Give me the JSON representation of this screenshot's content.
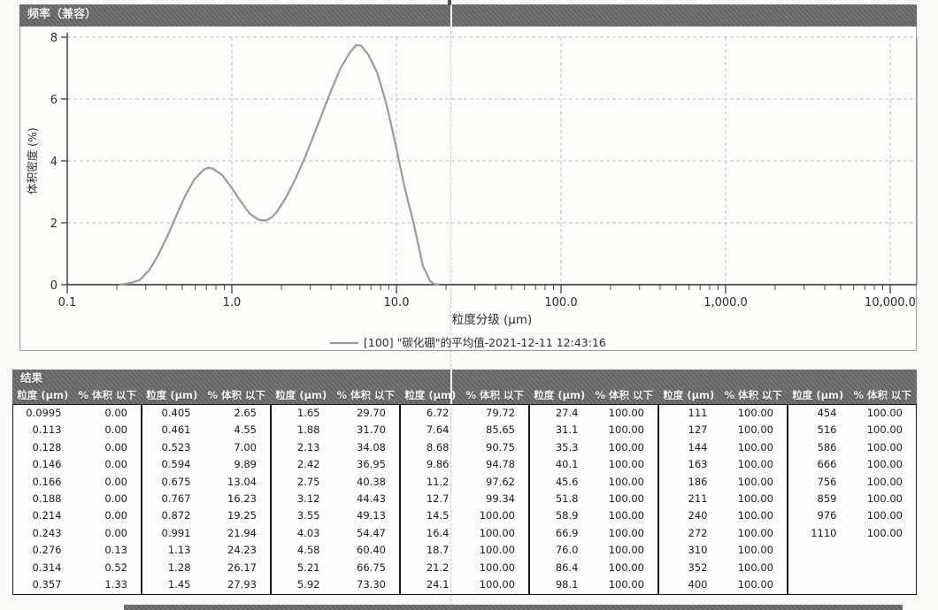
{
  "chart_data": {
    "type": "line",
    "title": "频率（兼容）",
    "xlabel": "粒度分级 (µm)",
    "ylabel": "体积密度 (%)",
    "x_scale": "log",
    "xlim": [
      0.1,
      10000
    ],
    "ylim": [
      0,
      8
    ],
    "x_tick_values": [
      0.1,
      1,
      10,
      100,
      1000,
      10000
    ],
    "x_tick_labels": [
      "0.1",
      "1.0",
      "10.0",
      "100.0",
      "1,000.0",
      "10,000.0"
    ],
    "y_ticks": [
      0,
      2,
      4,
      6,
      8
    ],
    "grid": true,
    "legend_position": "bottom",
    "series": [
      {
        "name": "[100] \"碳化硼\"的平均值-2021-12-11 12:43:16",
        "color": "#9a9a9a",
        "points": [
          [
            0.21,
            0
          ],
          [
            0.24,
            0.05
          ],
          [
            0.276,
            0.15
          ],
          [
            0.314,
            0.46
          ],
          [
            0.357,
            0.96
          ],
          [
            0.405,
            1.56
          ],
          [
            0.461,
            2.24
          ],
          [
            0.523,
            2.89
          ],
          [
            0.594,
            3.41
          ],
          [
            0.675,
            3.72
          ],
          [
            0.72,
            3.78
          ],
          [
            0.767,
            3.75
          ],
          [
            0.872,
            3.55
          ],
          [
            0.991,
            3.15
          ],
          [
            1.13,
            2.7
          ],
          [
            1.28,
            2.3
          ],
          [
            1.45,
            2.1
          ],
          [
            1.6,
            2.07
          ],
          [
            1.75,
            2.18
          ],
          [
            1.88,
            2.36
          ],
          [
            2.13,
            2.81
          ],
          [
            2.42,
            3.39
          ],
          [
            2.75,
            4.05
          ],
          [
            3.12,
            4.78
          ],
          [
            3.55,
            5.55
          ],
          [
            4.03,
            6.3
          ],
          [
            4.58,
            7.0
          ],
          [
            5.21,
            7.5
          ],
          [
            5.7,
            7.75
          ],
          [
            6.1,
            7.72
          ],
          [
            6.72,
            7.45
          ],
          [
            7.64,
            6.85
          ],
          [
            8.68,
            5.85
          ],
          [
            9.86,
            4.55
          ],
          [
            11.2,
            3.15
          ],
          [
            12.7,
            2.0
          ],
          [
            14.5,
            0.6
          ],
          [
            16,
            0.12
          ],
          [
            17,
            0.02
          ],
          [
            18,
            0
          ]
        ]
      }
    ]
  },
  "results_table": {
    "title": "结果",
    "size_header": "粒度 (µm)",
    "pct_header": "% 体积 以下",
    "groups": [
      {
        "rows": [
          [
            "0.0995",
            "0.00"
          ],
          [
            "0.113",
            "0.00"
          ],
          [
            "0.128",
            "0.00"
          ],
          [
            "0.146",
            "0.00"
          ],
          [
            "0.166",
            "0.00"
          ],
          [
            "0.188",
            "0.00"
          ],
          [
            "0.214",
            "0.00"
          ],
          [
            "0.243",
            "0.00"
          ],
          [
            "0.276",
            "0.13"
          ],
          [
            "0.314",
            "0.52"
          ],
          [
            "0.357",
            "1.33"
          ]
        ]
      },
      {
        "rows": [
          [
            "0.405",
            "2.65"
          ],
          [
            "0.461",
            "4.55"
          ],
          [
            "0.523",
            "7.00"
          ],
          [
            "0.594",
            "9.89"
          ],
          [
            "0.675",
            "13.04"
          ],
          [
            "0.767",
            "16.23"
          ],
          [
            "0.872",
            "19.25"
          ],
          [
            "0.991",
            "21.94"
          ],
          [
            "1.13",
            "24.23"
          ],
          [
            "1.28",
            "26.17"
          ],
          [
            "1.45",
            "27.93"
          ]
        ]
      },
      {
        "rows": [
          [
            "1.65",
            "29.70"
          ],
          [
            "1.88",
            "31.70"
          ],
          [
            "2.13",
            "34.08"
          ],
          [
            "2.42",
            "36.95"
          ],
          [
            "2.75",
            "40.38"
          ],
          [
            "3.12",
            "44.43"
          ],
          [
            "3.55",
            "49.13"
          ],
          [
            "4.03",
            "54.47"
          ],
          [
            "4.58",
            "60.40"
          ],
          [
            "5.21",
            "66.75"
          ],
          [
            "5.92",
            "73.30"
          ]
        ]
      },
      {
        "rows": [
          [
            "6.72",
            "79.72"
          ],
          [
            "7.64",
            "85.65"
          ],
          [
            "8.68",
            "90.75"
          ],
          [
            "9.86",
            "94.78"
          ],
          [
            "11.2",
            "97.62"
          ],
          [
            "12.7",
            "99.34"
          ],
          [
            "14.5",
            "100.00"
          ],
          [
            "16.4",
            "100.00"
          ],
          [
            "18.7",
            "100.00"
          ],
          [
            "21.2",
            "100.00"
          ],
          [
            "24.1",
            "100.00"
          ]
        ]
      },
      {
        "rows": [
          [
            "27.4",
            "100.00"
          ],
          [
            "31.1",
            "100.00"
          ],
          [
            "35.3",
            "100.00"
          ],
          [
            "40.1",
            "100.00"
          ],
          [
            "45.6",
            "100.00"
          ],
          [
            "51.8",
            "100.00"
          ],
          [
            "58.9",
            "100.00"
          ],
          [
            "66.9",
            "100.00"
          ],
          [
            "76.0",
            "100.00"
          ],
          [
            "86.4",
            "100.00"
          ],
          [
            "98.1",
            "100.00"
          ]
        ]
      },
      {
        "rows": [
          [
            "111",
            "100.00"
          ],
          [
            "127",
            "100.00"
          ],
          [
            "144",
            "100.00"
          ],
          [
            "163",
            "100.00"
          ],
          [
            "186",
            "100.00"
          ],
          [
            "211",
            "100.00"
          ],
          [
            "240",
            "100.00"
          ],
          [
            "272",
            "100.00"
          ],
          [
            "310",
            "100.00"
          ],
          [
            "352",
            "100.00"
          ],
          [
            "400",
            "100.00"
          ]
        ]
      },
      {
        "rows": [
          [
            "454",
            "100.00"
          ],
          [
            "516",
            "100.00"
          ],
          [
            "586",
            "100.00"
          ],
          [
            "666",
            "100.00"
          ],
          [
            "756",
            "100.00"
          ],
          [
            "859",
            "100.00"
          ],
          [
            "976",
            "100.00"
          ],
          [
            "1110",
            "100.00"
          ]
        ]
      }
    ]
  }
}
